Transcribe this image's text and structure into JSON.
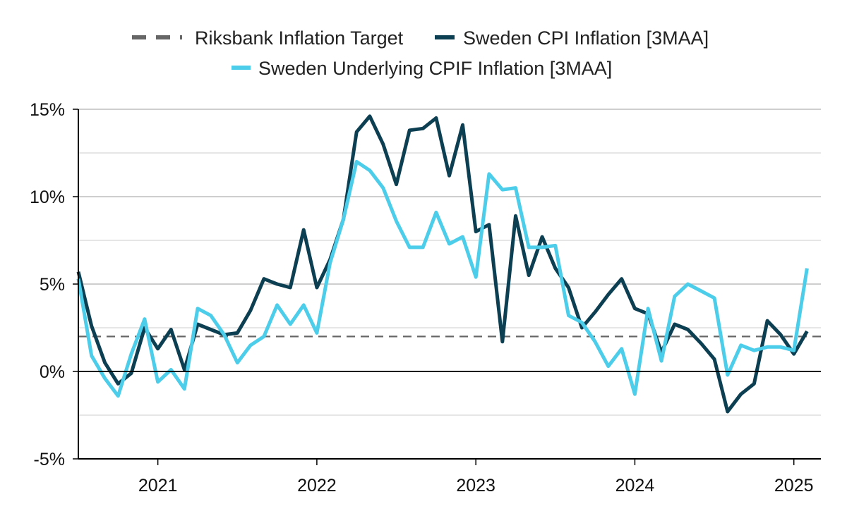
{
  "chart_data": {
    "type": "line",
    "title": "",
    "xlabel": "",
    "ylabel": "",
    "ylim": [
      -5,
      15
    ],
    "y_ticks": [
      -5,
      0,
      5,
      10,
      15
    ],
    "y_tick_labels": [
      "-5%",
      "0%",
      "5%",
      "10%",
      "15%"
    ],
    "x_ticks": [
      2021,
      2022,
      2023,
      2024,
      2025
    ],
    "x_tick_labels": [
      "2021",
      "2022",
      "2023",
      "2024",
      "2025"
    ],
    "xlim": [
      2020.5,
      2025.17
    ],
    "grid": true,
    "legend_position": "top-center",
    "colors": {
      "target": "#666666",
      "cpi": "#0d3f52",
      "cpif": "#4ccdea",
      "grid_major": "#bdbdbd",
      "grid_minor": "#dddddd",
      "axis": "#000000"
    },
    "series": [
      {
        "name": "Riksbank Inflation Target",
        "style": "dashed",
        "x": [
          2020.5,
          2025.17
        ],
        "values": [
          2,
          2
        ]
      },
      {
        "name": "Sweden CPI Inflation [3MAA]",
        "style": "solid",
        "x": [
          2020.5,
          2020.583,
          2020.667,
          2020.75,
          2020.833,
          2020.917,
          2021.0,
          2021.083,
          2021.167,
          2021.25,
          2021.333,
          2021.417,
          2021.5,
          2021.583,
          2021.667,
          2021.75,
          2021.833,
          2021.917,
          2022.0,
          2022.083,
          2022.167,
          2022.25,
          2022.333,
          2022.417,
          2022.5,
          2022.583,
          2022.667,
          2022.75,
          2022.833,
          2022.917,
          2023.0,
          2023.083,
          2023.167,
          2023.25,
          2023.333,
          2023.417,
          2023.5,
          2023.583,
          2023.667,
          2023.75,
          2023.833,
          2023.917,
          2024.0,
          2024.083,
          2024.167,
          2024.25,
          2024.333,
          2024.417,
          2024.5,
          2024.583,
          2024.667,
          2024.75,
          2024.833,
          2024.917,
          2025.0,
          2025.083
        ],
        "values": [
          5.7,
          2.6,
          0.5,
          -0.7,
          -0.1,
          2.5,
          1.3,
          2.4,
          0.1,
          2.7,
          2.4,
          2.1,
          2.2,
          3.5,
          5.3,
          5.0,
          4.8,
          8.1,
          4.8,
          6.4,
          8.7,
          13.7,
          14.6,
          13.0,
          10.7,
          13.8,
          13.9,
          14.5,
          11.2,
          14.1,
          8.0,
          8.4,
          1.7,
          8.9,
          5.5,
          7.7,
          5.9,
          4.8,
          2.5,
          3.4,
          4.4,
          5.3,
          3.6,
          3.3,
          1.1,
          2.7,
          2.4,
          1.6,
          0.7,
          -2.3,
          -1.3,
          -0.7,
          2.9,
          2.1,
          1.0,
          2.3
        ]
      },
      {
        "name": "Sweden Underlying CPIF Inflation [3MAA]",
        "style": "solid",
        "x": [
          2020.5,
          2020.583,
          2020.667,
          2020.75,
          2020.833,
          2020.917,
          2021.0,
          2021.083,
          2021.167,
          2021.25,
          2021.333,
          2021.417,
          2021.5,
          2021.583,
          2021.667,
          2021.75,
          2021.833,
          2021.917,
          2022.0,
          2022.083,
          2022.167,
          2022.25,
          2022.333,
          2022.417,
          2022.5,
          2022.583,
          2022.667,
          2022.75,
          2022.833,
          2022.917,
          2023.0,
          2023.083,
          2023.167,
          2023.25,
          2023.333,
          2023.417,
          2023.5,
          2023.583,
          2023.667,
          2023.75,
          2023.833,
          2023.917,
          2024.0,
          2024.083,
          2024.167,
          2024.25,
          2024.333,
          2024.417,
          2024.5,
          2024.583,
          2024.667,
          2024.75,
          2024.833,
          2024.917,
          2025.0,
          2025.083
        ],
        "values": [
          5.3,
          0.9,
          -0.4,
          -1.4,
          1.0,
          3.0,
          -0.6,
          0.1,
          -1.0,
          3.6,
          3.2,
          2.1,
          0.5,
          1.5,
          2.0,
          3.8,
          2.7,
          3.8,
          2.2,
          6.2,
          8.7,
          12.0,
          11.5,
          10.5,
          8.6,
          7.1,
          7.1,
          9.1,
          7.3,
          7.7,
          5.4,
          11.3,
          10.4,
          10.5,
          7.1,
          7.1,
          7.2,
          3.2,
          2.8,
          1.7,
          0.3,
          1.3,
          -1.3,
          3.6,
          0.6,
          4.3,
          5.0,
          4.6,
          4.2,
          -0.2,
          1.5,
          1.2,
          1.4,
          1.4,
          1.2,
          5.9
        ]
      }
    ]
  }
}
